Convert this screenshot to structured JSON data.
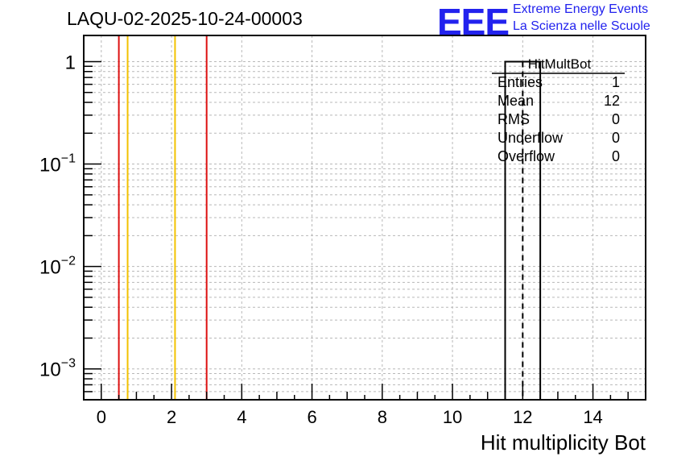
{
  "header": {
    "run_title": "LAQU-02-2025-10-24-00003",
    "logo_text": "EEE",
    "logo_line1": "Extreme Energy Events",
    "logo_line2": "La Scienza nelle Scuole"
  },
  "stats": {
    "name": "HitMultBot",
    "rows": [
      {
        "label": "Entries",
        "value": "1"
      },
      {
        "label": "Mean",
        "value": "12"
      },
      {
        "label": "RMS",
        "value": "0"
      },
      {
        "label": "Underflow",
        "value": "0"
      },
      {
        "label": "Overflow",
        "value": "0"
      }
    ]
  },
  "chart_data": {
    "type": "histogram",
    "title": "LAQU-02-2025-10-24-00003",
    "xlabel": "Hit multiplicity Bot",
    "ylabel": "",
    "yscale": "log",
    "xlim": [
      -0.5,
      15.5
    ],
    "ylim": [
      0.0005,
      1.8
    ],
    "xticks": [
      0,
      2,
      4,
      6,
      8,
      10,
      12,
      14
    ],
    "xtick_labels": [
      "0",
      "2",
      "4",
      "6",
      "8",
      "10",
      "12",
      "14"
    ],
    "yticks": [
      0.001,
      0.01,
      0.1,
      1
    ],
    "ytick_labels": [
      {
        "base": "10",
        "exp": "−3"
      },
      {
        "base": "10",
        "exp": "−2"
      },
      {
        "base": "10",
        "exp": "−1"
      },
      {
        "base": "1",
        "exp": ""
      }
    ],
    "grid": true,
    "bins": [
      {
        "low": 11.5,
        "high": 12.5,
        "content": 1
      }
    ],
    "mean_marker": 12,
    "vertical_lines": [
      {
        "x": 0.5,
        "color": "#dd1111"
      },
      {
        "x": 0.75,
        "color": "#f2c200"
      },
      {
        "x": 2.1,
        "color": "#f2c200"
      },
      {
        "x": 3.0,
        "color": "#dd1111"
      }
    ]
  }
}
